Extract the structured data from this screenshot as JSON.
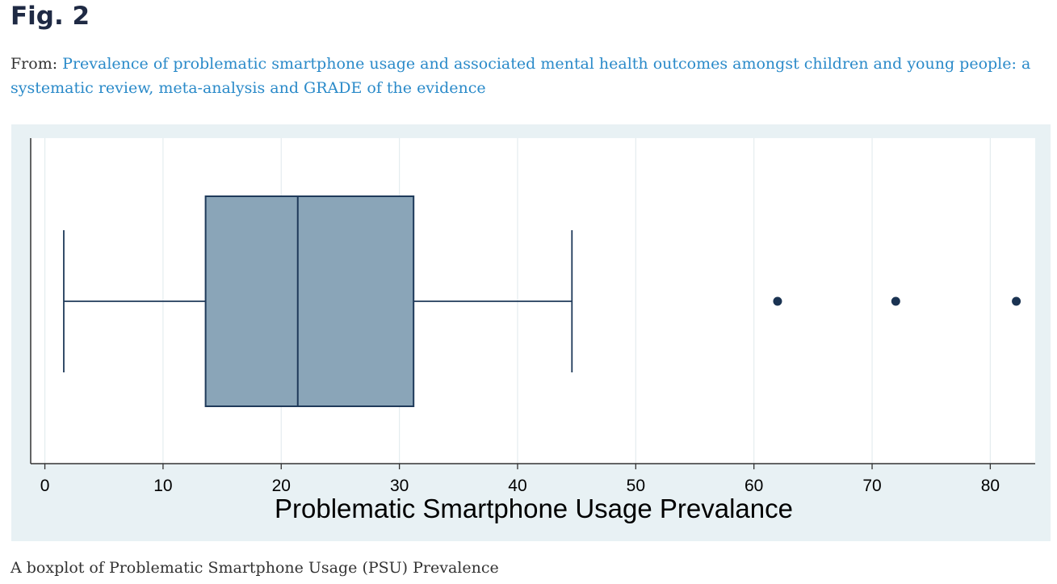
{
  "figure": {
    "title": "Fig. 2",
    "from_label": "From:",
    "article_title": "Prevalence of problematic smartphone usage and associated mental health outcomes amongst children and young people: a systematic review, meta-analysis and GRADE of the evidence",
    "caption": "A boxplot of Problematic Smartphone Usage (PSU) Prevalence"
  },
  "colors": {
    "panel_background": "#e8f1f4",
    "plot_background": "#ffffff",
    "box_fill": "#8aa5b8",
    "box_stroke": "#1f3a5a",
    "outlier": "#1a3352",
    "gridline": "#e4ecef",
    "link": "#2a8ac9"
  },
  "chart_data": {
    "type": "boxplot",
    "orientation": "horizontal",
    "title": "",
    "xlabel": "Problematic Smartphone Usage Prevalance",
    "ylabel": "",
    "xlim": [
      -1.2,
      83.8
    ],
    "xticks": [
      0,
      10,
      20,
      30,
      40,
      50,
      60,
      70,
      80
    ],
    "grid": true,
    "box": {
      "whisker_low": 1.6,
      "q1": 13.6,
      "median": 21.4,
      "q3": 31.2,
      "whisker_high": 44.6
    },
    "outliers": [
      62.0,
      72.0,
      82.2
    ]
  }
}
